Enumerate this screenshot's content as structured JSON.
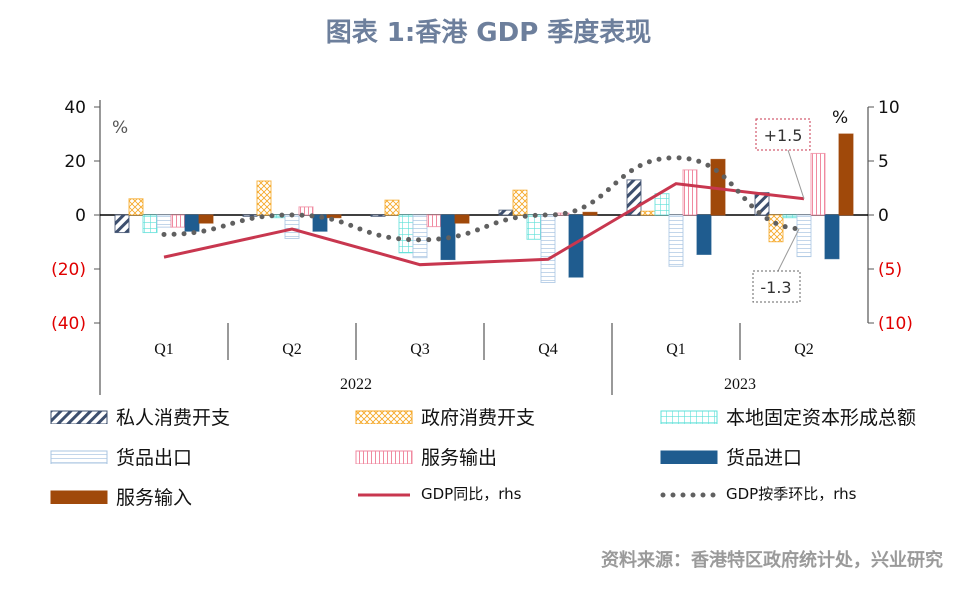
{
  "title": "图表 1:香港 GDP 季度表现",
  "source": "资料来源：香港特区政府统计处，兴业研究",
  "chart_data": {
    "type": "bar",
    "title": "图表 1:香港 GDP 季度表现",
    "categories": [
      "Q1",
      "Q2",
      "Q3",
      "Q4",
      "Q1",
      "Q2"
    ],
    "years": [
      {
        "label": "2022",
        "span": 4
      },
      {
        "label": "2023",
        "span": 2
      }
    ],
    "left_axis": {
      "unit": "%",
      "ylim": [
        -40,
        40
      ],
      "ticks": [
        40,
        20,
        0,
        -20,
        -40
      ],
      "tick_labels": [
        "40",
        "20",
        "0",
        "(20)",
        "(40)"
      ]
    },
    "right_axis": {
      "unit": "%",
      "ylim": [
        -10,
        10
      ],
      "ticks": [
        10,
        5,
        0,
        -5,
        -10
      ],
      "tick_labels": [
        "10",
        "5",
        "0",
        "(5)",
        "(10)"
      ]
    },
    "negative_label_color": "#e00000",
    "series": [
      {
        "name": "私人消费开支",
        "kind": "bar",
        "axis": "left",
        "color": "#3d4f6e",
        "pattern": "diagonal",
        "values": [
          -6.5,
          -0.5,
          -0.5,
          1.8,
          13,
          8.3
        ]
      },
      {
        "name": "政府消费开支",
        "kind": "bar",
        "axis": "left",
        "color": "#f5a623",
        "pattern": "crosshatch",
        "values": [
          6,
          12.6,
          5.5,
          9.2,
          1.4,
          -9.9
        ]
      },
      {
        "name": "本地固定资本形成总额",
        "kind": "bar",
        "axis": "left",
        "color": "#5ee0d8",
        "pattern": "grid",
        "values": [
          -6.5,
          -1,
          -14,
          -9,
          7.9,
          -1
        ]
      },
      {
        "name": "货品出口",
        "kind": "bar",
        "axis": "left",
        "color": "#a9c4e2",
        "pattern": "horizontal",
        "values": [
          -4.5,
          -8.7,
          -15.8,
          -25,
          -19,
          -15.4
        ]
      },
      {
        "name": "服务输出",
        "kind": "bar",
        "axis": "left",
        "color": "#f08aa0",
        "pattern": "vertical",
        "values": [
          -4.5,
          3,
          -4.3,
          0.7,
          16.7,
          22.8
        ]
      },
      {
        "name": "货品进口",
        "kind": "bar",
        "axis": "left",
        "color": "#1f5c8f",
        "pattern": "solid",
        "values": [
          -6,
          -6,
          -16.5,
          -23,
          -14.6,
          -16.2
        ]
      },
      {
        "name": "服务输入",
        "kind": "bar",
        "axis": "left",
        "color": "#a0490a",
        "pattern": "solid",
        "values": [
          -3,
          -1,
          -3,
          1,
          20.6,
          30
        ]
      },
      {
        "name": "GDP同比，rhs",
        "kind": "line",
        "axis": "right",
        "color": "#c8374f",
        "values": [
          -3.9,
          -1.3,
          -4.6,
          -4.1,
          2.9,
          1.5
        ]
      },
      {
        "name": "GDP按季环比，rhs",
        "kind": "dotted-line",
        "axis": "right",
        "color": "#606060",
        "values": [
          -1.8,
          0,
          -2.3,
          0,
          5.3,
          -1.3
        ]
      }
    ],
    "annotations": [
      {
        "text": "+1.5",
        "series": "GDP同比，rhs",
        "border_color": "#c8374f"
      },
      {
        "text": "-1.3",
        "series": "GDP按季环比，rhs",
        "border_color": "#666666"
      }
    ],
    "legend_position": "bottom",
    "grid": false
  }
}
